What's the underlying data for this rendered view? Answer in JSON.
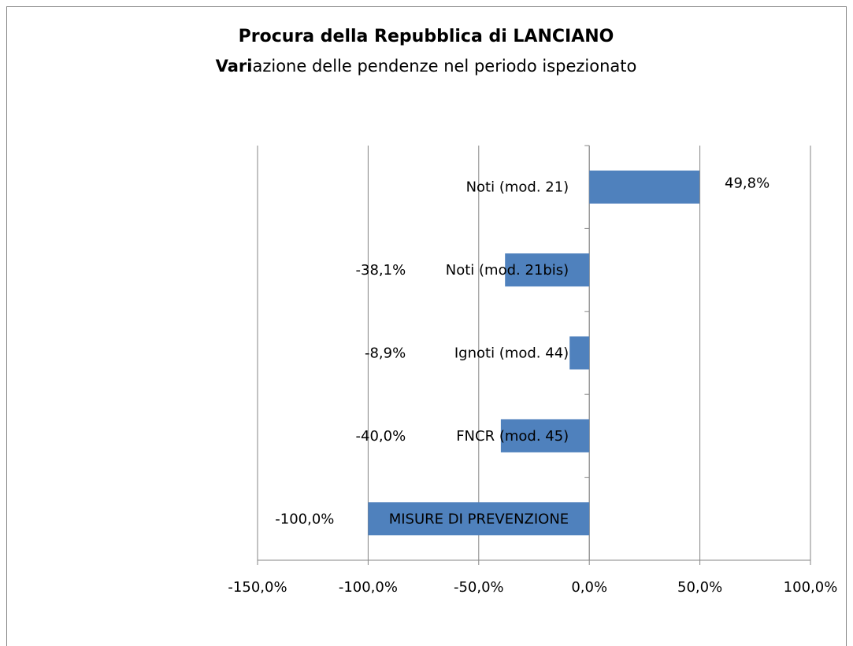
{
  "chart_data": {
    "type": "hbar",
    "title": "Procura della Repubblica di LANCIANO",
    "subtitle": "Variazione delle pendenze nel periodo ispezionato",
    "categories": [
      "Noti (mod. 21)",
      "Noti (mod. 21bis)",
      "Ignoti (mod. 44)",
      "FNCR (mod. 45)",
      "MISURE DI PREVENZIONE"
    ],
    "values": [
      49.8,
      -38.1,
      -8.9,
      -40.0,
      -100.0
    ],
    "value_labels": [
      "49,8%",
      "-38,1%",
      "-8,9%",
      "-40,0%",
      "-100,0%"
    ],
    "color": "#4f81bd",
    "xlim": [
      -150,
      100
    ],
    "xticks": [
      {
        "value": -150,
        "label": "-150,0%"
      },
      {
        "value": -100,
        "label": "-100,0%"
      },
      {
        "value": -50,
        "label": "-50,0%"
      },
      {
        "value": 0,
        "label": "0,0%"
      },
      {
        "value": 50,
        "label": "50,0%"
      },
      {
        "value": 100,
        "label": "100,0%"
      }
    ],
    "grid": true
  }
}
